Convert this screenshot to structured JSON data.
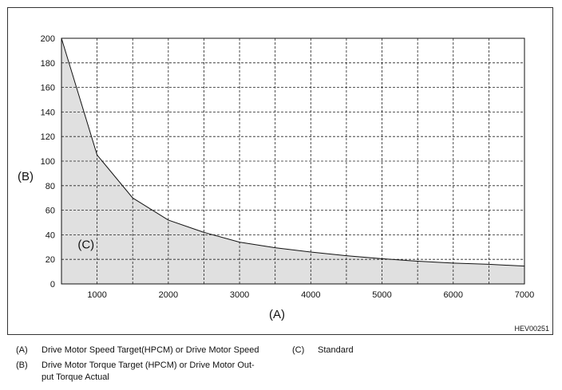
{
  "chart_data": {
    "type": "area",
    "x": [
      500,
      1000,
      1500,
      2000,
      2500,
      3000,
      3500,
      4000,
      4500,
      5000,
      5500,
      6000,
      6500,
      7000
    ],
    "series": [
      {
        "values": [
          200,
          105,
          70,
          52,
          42,
          34,
          29.5,
          26,
          23,
          20.5,
          18.5,
          17,
          16,
          14.5
        ]
      }
    ],
    "xlim": [
      500,
      7000
    ],
    "ylim": [
      0,
      200
    ],
    "x_ticks": [
      1000,
      2000,
      3000,
      4000,
      5000,
      6000,
      7000
    ],
    "y_ticks": [
      0,
      20,
      40,
      60,
      80,
      100,
      120,
      140,
      160,
      180,
      200
    ],
    "x_grid": [
      1000,
      1500,
      2000,
      2500,
      3000,
      3500,
      4000,
      4500,
      5000,
      5500,
      6000,
      6500
    ],
    "grid": true,
    "grid_style": "dashed",
    "fill_color": "#dddddd",
    "line_color": "#111111",
    "xlabel": "(A)",
    "ylabel": "(B)",
    "region_label": "(C)",
    "region_label_pos": {
      "x": 800,
      "y": 29
    },
    "figure_code": "HEV00251"
  },
  "legend": {
    "a_key": "(A)",
    "a_text": "Drive Motor Speed Target(HPCM) or Drive Motor Speed",
    "c_key": "(C)",
    "c_text": "Standard",
    "b_key": "(B)",
    "b_text_line1": "Drive Motor Torque Target (HPCM) or Drive Motor Out-",
    "b_text_line2": "put Torque Actual"
  }
}
